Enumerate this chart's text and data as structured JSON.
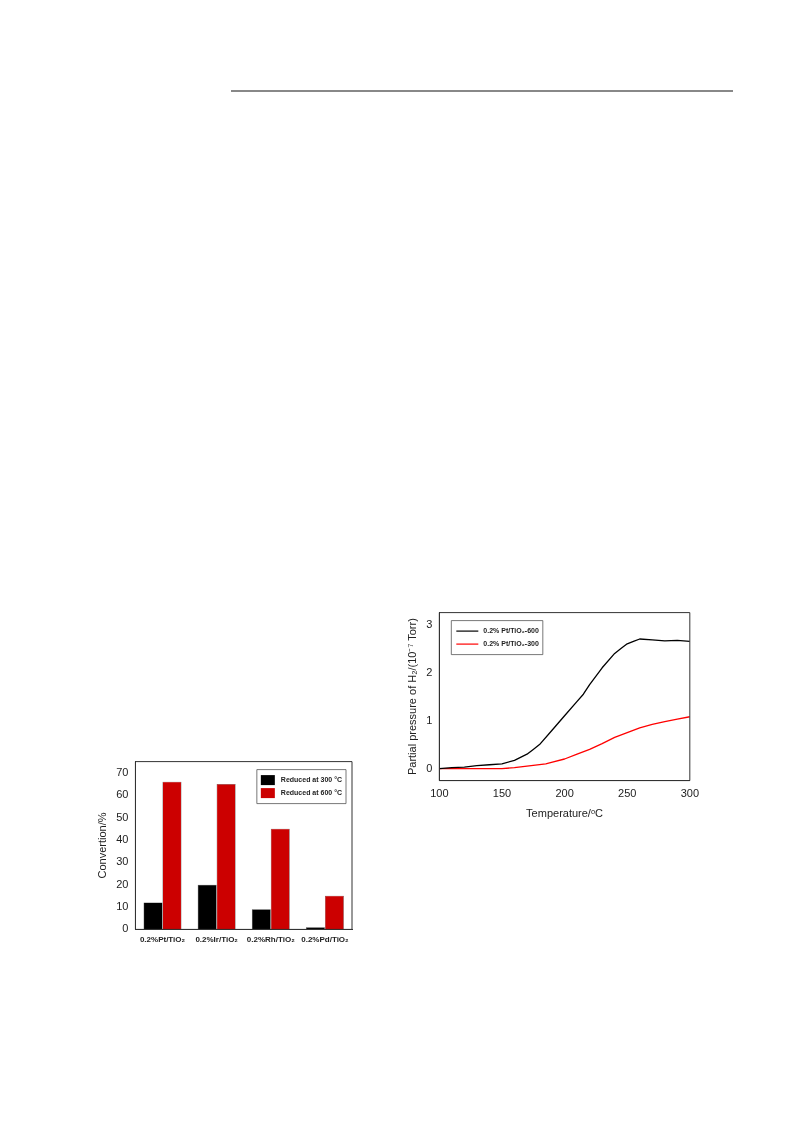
{
  "chart_data": [
    {
      "type": "bar",
      "ylabel": "Convertion/%",
      "categories": [
        "0.2%Pt/TiO₂",
        "0.2%Ir/TiO₂",
        "0.2%Rh/TiO₂",
        "0.2%Pd/TiO₂"
      ],
      "series": [
        {
          "name": "Reduced at 300 °C",
          "color": "#000000",
          "values": [
            12,
            20,
            9,
            1
          ]
        },
        {
          "name": "Reduced at 600 °C",
          "color": "#cc0000",
          "values": [
            66,
            65,
            45,
            15
          ]
        }
      ],
      "ylim": [
        0,
        75
      ],
      "yticks": [
        0,
        10,
        20,
        30,
        40,
        50,
        60,
        70
      ],
      "grid": false,
      "legend": "top right"
    },
    {
      "type": "line",
      "xlabel": "Temperature/ᵒC",
      "ylabel": "Partial pressure of H₂/(10⁻⁷ Torr)",
      "series": [
        {
          "name": "0.2% Pt/TiO₂-600",
          "color": "#000000",
          "x": [
            100,
            110,
            120,
            130,
            140,
            150,
            160,
            170,
            175,
            180,
            190,
            200,
            210,
            215,
            220,
            230,
            240,
            245,
            250,
            255,
            260,
            270,
            280,
            290,
            300
          ],
          "values": [
            0,
            0.02,
            0.03,
            0.06,
            0.08,
            0.1,
            0.17,
            0.3,
            0.4,
            0.5,
            0.8,
            1.1,
            1.4,
            1.55,
            1.75,
            2.1,
            2.4,
            2.5,
            2.6,
            2.65,
            2.7,
            2.68,
            2.66,
            2.67,
            2.65
          ]
        },
        {
          "name": "0.2% Pt/TiO₂-300",
          "color": "#ff0000",
          "x": [
            100,
            120,
            140,
            150,
            160,
            170,
            185,
            200,
            210,
            220,
            230,
            240,
            250,
            260,
            270,
            280,
            290,
            300
          ],
          "values": [
            0,
            0,
            0,
            0,
            0.02,
            0.05,
            0.1,
            0.2,
            0.3,
            0.4,
            0.52,
            0.65,
            0.75,
            0.85,
            0.92,
            0.98,
            1.03,
            1.08
          ]
        }
      ],
      "xlim": [
        100,
        300
      ],
      "xticks": [
        100,
        150,
        200,
        250,
        300
      ],
      "ylim": [
        -0.25,
        3.25
      ],
      "yticks": [
        0,
        1,
        2,
        3
      ],
      "grid": false,
      "legend": "top left",
      "marker": "none"
    }
  ]
}
